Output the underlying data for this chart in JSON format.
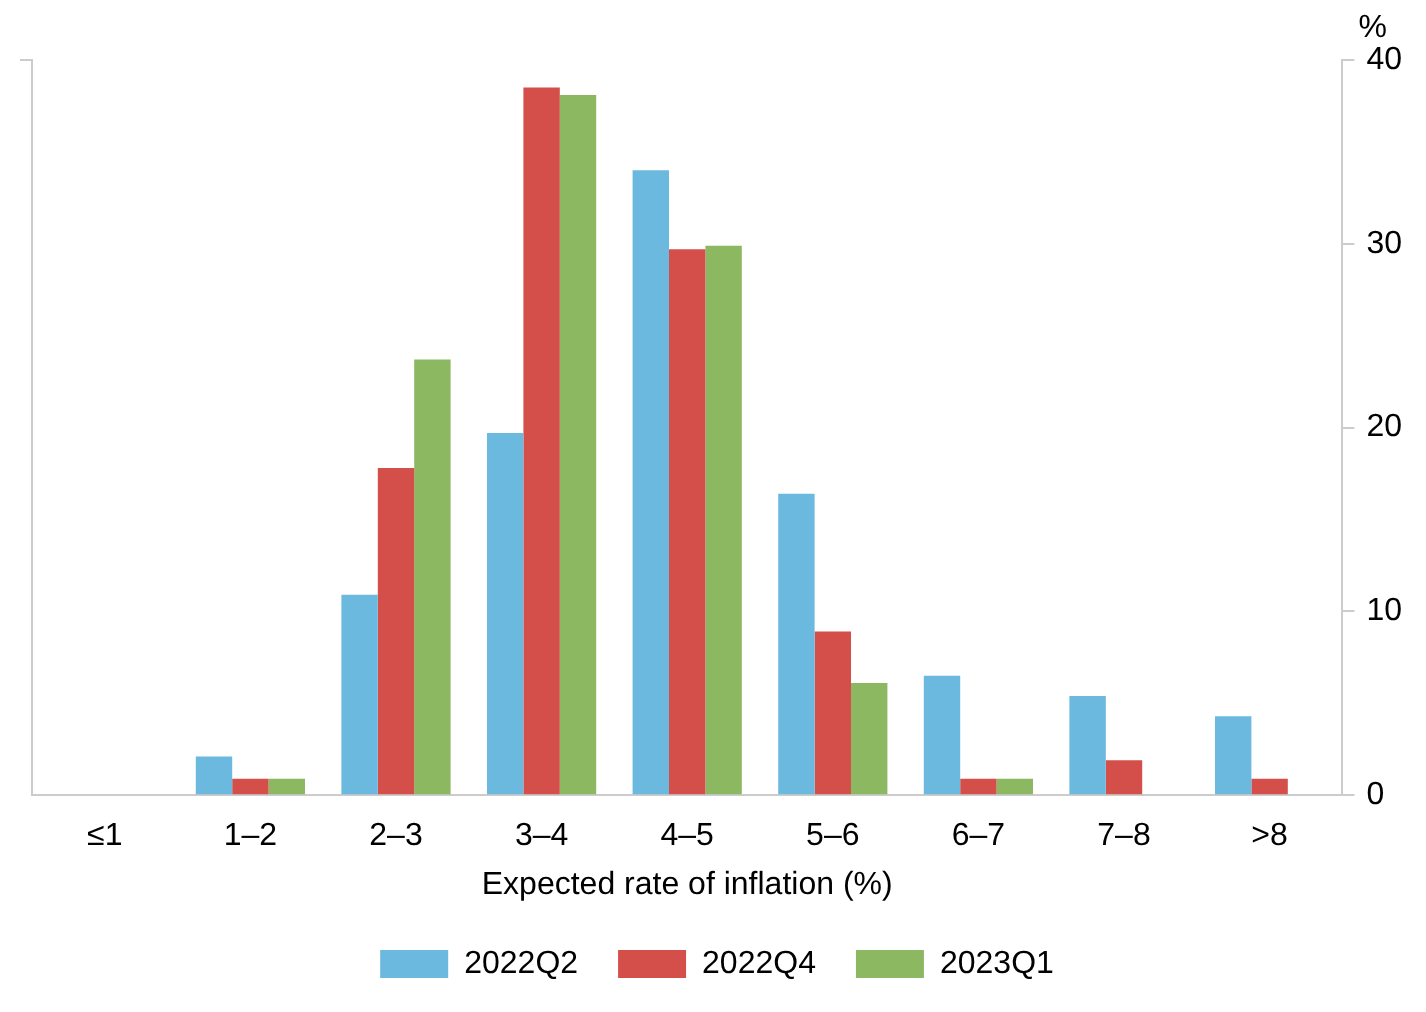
{
  "chart_data": {
    "type": "bar",
    "xlabel": "Expected rate of inflation (%)",
    "ylabel": "%",
    "categories": [
      "≤1",
      "1–2",
      "2–3",
      "3–4",
      "4–5",
      "5–6",
      "6–7",
      "7–8",
      ">8"
    ],
    "series": [
      {
        "name": "2022Q2",
        "color": "#6bb9de",
        "values": [
          0,
          2.1,
          10.9,
          19.7,
          34.0,
          16.4,
          6.5,
          5.4,
          4.3
        ]
      },
      {
        "name": "2022Q4",
        "color": "#d44f4a",
        "values": [
          0,
          0.9,
          17.8,
          38.5,
          29.7,
          8.9,
          0.9,
          1.9,
          0.9
        ]
      },
      {
        "name": "2023Q1",
        "color": "#8db862",
        "values": [
          0,
          0.9,
          23.7,
          38.1,
          29.9,
          6.1,
          0.9,
          0,
          0
        ]
      }
    ],
    "ylim": [
      0,
      40
    ],
    "yticks": [
      0,
      10,
      20,
      30,
      40
    ],
    "grid": false,
    "legend": "bottom"
  }
}
